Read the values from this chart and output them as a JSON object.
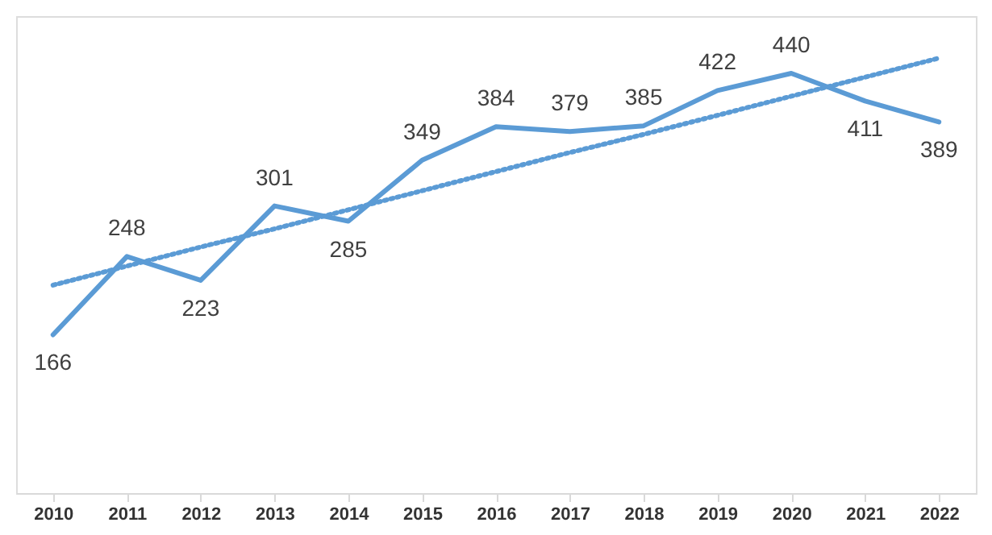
{
  "chart_data": {
    "type": "line",
    "categories": [
      "2010",
      "2011",
      "2012",
      "2013",
      "2014",
      "2015",
      "2016",
      "2017",
      "2018",
      "2019",
      "2020",
      "2021",
      "2022"
    ],
    "series": [
      {
        "color": "#5b9bd5",
        "values": [
          166,
          248,
          223,
          301,
          285,
          349,
          384,
          379,
          385,
          422,
          440,
          411,
          389
        ],
        "value_labels": [
          "166",
          "248",
          "223",
          "301",
          "285",
          "349",
          "384",
          "379",
          "385",
          "422",
          "440",
          "411",
          "389"
        ]
      },
      {
        "type": "line",
        "color": "#5b9bd5",
        "line_style": "dotted",
        "values": [
          218,
          238,
          258,
          277,
          297,
          317,
          337,
          357,
          376,
          396,
          416,
          436,
          456
        ]
      }
    ],
    "ylim": [
      0,
      500
    ],
    "tick_labels": "x",
    "grid": false,
    "marker": "none",
    "line_style": "solid"
  }
}
